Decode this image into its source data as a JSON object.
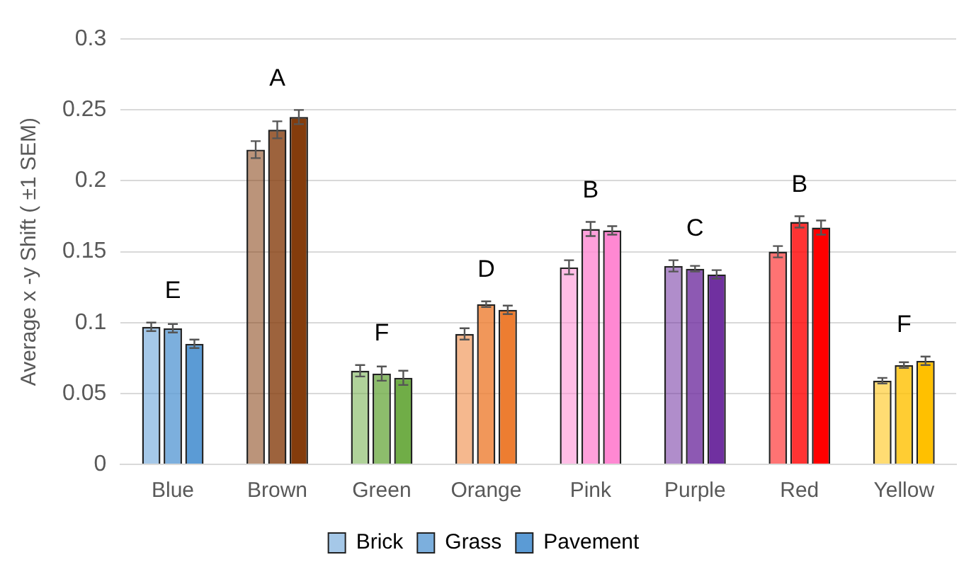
{
  "chart_data": {
    "type": "bar",
    "ylabel": "Average x -y Shift ( ±1 SEM)",
    "categories": [
      "Blue",
      "Brown",
      "Green",
      "Orange",
      "Pink",
      "Purple",
      "Red",
      "Yellow"
    ],
    "series": [
      {
        "name": "Brick",
        "colors": [
          "#5b9bd5",
          "#843c0c",
          "#70ad47",
          "#ed7d31",
          "#ff88d2",
          "#7030a0",
          "#ff0000",
          "#ffc000"
        ],
        "values": [
          0.097,
          0.222,
          0.066,
          0.092,
          0.139,
          0.14,
          0.15,
          0.059
        ],
        "errors": [
          0.003,
          0.006,
          0.004,
          0.004,
          0.005,
          0.004,
          0.004,
          0.002
        ]
      },
      {
        "name": "Grass",
        "colors": [
          "#5b9bd5",
          "#843c0c",
          "#70ad47",
          "#ed7d31",
          "#ff88d2",
          "#7030a0",
          "#ff0000",
          "#ffc000"
        ],
        "values": [
          0.096,
          0.236,
          0.064,
          0.113,
          0.166,
          0.138,
          0.171,
          0.07
        ],
        "errors": [
          0.003,
          0.006,
          0.005,
          0.002,
          0.005,
          0.002,
          0.004,
          0.002
        ]
      },
      {
        "name": "Pavement",
        "colors": [
          "#5b9bd5",
          "#843c0c",
          "#70ad47",
          "#ed7d31",
          "#ff88d2",
          "#7030a0",
          "#ff0000",
          "#ffc000"
        ],
        "values": [
          0.085,
          0.245,
          0.061,
          0.109,
          0.165,
          0.134,
          0.167,
          0.073
        ],
        "errors": [
          0.003,
          0.005,
          0.005,
          0.003,
          0.003,
          0.003,
          0.005,
          0.003
        ]
      }
    ],
    "ylim": [
      0,
      0.3
    ],
    "yticks": [
      0,
      0.05,
      0.1,
      0.15,
      0.2,
      0.25,
      0.3
    ],
    "grid": "y",
    "legend": "bottom",
    "annotations": [
      "E",
      "A",
      "F",
      "D",
      "B",
      "C",
      "B",
      "F"
    ]
  }
}
